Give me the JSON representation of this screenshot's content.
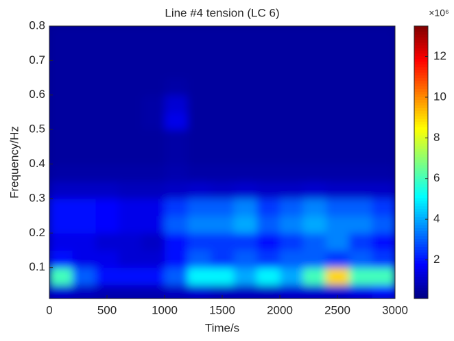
{
  "chart_data": {
    "type": "heatmap",
    "title": "Line #4 tension (LC 6)",
    "x_label": "Time/s",
    "y_label": "Frequency/Hz",
    "xlim": [
      0,
      3000
    ],
    "ylim": [
      0.01,
      0.8
    ],
    "xticks": [
      0,
      500,
      1000,
      1500,
      2000,
      2500,
      3000
    ],
    "yticks": [
      0.1,
      0.2,
      0.3,
      0.4,
      0.5,
      0.6,
      0.7,
      0.8
    ],
    "xbins": [
      0,
      200,
      400,
      600,
      800,
      1000,
      1200,
      1400,
      1600,
      1800,
      2000,
      2200,
      2400,
      2600,
      2800,
      3000
    ],
    "ybins": [
      0.01,
      0.05,
      0.1,
      0.15,
      0.2,
      0.25,
      0.3,
      0.35,
      0.4,
      0.45,
      0.5,
      0.55,
      0.6,
      0.65,
      0.7,
      0.75,
      0.8
    ],
    "z": [
      [
        1.2,
        1,
        0.8,
        0.8,
        0.8,
        1,
        1.2,
        1,
        1,
        1,
        1.2,
        1.2,
        1.2,
        1.5,
        2
      ],
      [
        6,
        3,
        2,
        2,
        2,
        3,
        5,
        5,
        4,
        5,
        4,
        6,
        9,
        6,
        6
      ],
      [
        2,
        1.5,
        1.5,
        1.2,
        1.2,
        2,
        3,
        2.5,
        3,
        2.5,
        3,
        3,
        2.5,
        3,
        2.5
      ],
      [
        1.5,
        1.5,
        1.2,
        1.2,
        1,
        2,
        2.5,
        2.5,
        2.5,
        2,
        2.5,
        3,
        3.5,
        2.5,
        2
      ],
      [
        2,
        2,
        1.8,
        1.5,
        1.5,
        3,
        3.5,
        3.5,
        4,
        3,
        3.5,
        4,
        3.5,
        3.5,
        3
      ],
      [
        2,
        2,
        1.8,
        1.5,
        1.5,
        2.5,
        3,
        3,
        3.5,
        2.5,
        3,
        3.5,
        3,
        3,
        2.5
      ],
      [
        1,
        1,
        1,
        0.9,
        0.9,
        1,
        1.1,
        1,
        1.1,
        1,
        1,
        1.1,
        1,
        1,
        1
      ],
      [
        0.6,
        0.6,
        0.6,
        0.6,
        0.6,
        0.7,
        0.6,
        0.6,
        0.6,
        0.6,
        0.6,
        0.6,
        0.6,
        0.6,
        0.6
      ],
      [
        0.5,
        0.5,
        0.5,
        0.5,
        0.5,
        0.6,
        0.5,
        0.5,
        0.5,
        0.5,
        0.5,
        0.5,
        0.5,
        0.5,
        0.5
      ],
      [
        0.5,
        0.5,
        0.5,
        0.5,
        0.5,
        0.6,
        0.5,
        0.5,
        0.5,
        0.5,
        0.5,
        0.5,
        0.5,
        0.5,
        0.5
      ],
      [
        0.5,
        0.5,
        0.5,
        0.5,
        0.6,
        1.5,
        0.5,
        0.5,
        0.5,
        0.5,
        0.5,
        0.5,
        0.5,
        0.5,
        0.5
      ],
      [
        0.5,
        0.5,
        0.5,
        0.5,
        0.6,
        1.2,
        0.5,
        0.5,
        0.5,
        0.5,
        0.5,
        0.5,
        0.5,
        0.5,
        0.5
      ],
      [
        0.5,
        0.5,
        0.5,
        0.5,
        0.5,
        0.6,
        0.5,
        0.5,
        0.5,
        0.5,
        0.5,
        0.5,
        0.5,
        0.5,
        0.5
      ],
      [
        0.5,
        0.5,
        0.5,
        0.5,
        0.5,
        0.5,
        0.5,
        0.5,
        0.5,
        0.5,
        0.5,
        0.5,
        0.5,
        0.5,
        0.5
      ],
      [
        0.5,
        0.5,
        0.5,
        0.5,
        0.5,
        0.5,
        0.5,
        0.5,
        0.5,
        0.5,
        0.5,
        0.5,
        0.5,
        0.5,
        0.5
      ],
      [
        0.5,
        0.5,
        0.5,
        0.5,
        0.5,
        0.5,
        0.5,
        0.5,
        0.5,
        0.5,
        0.5,
        0.5,
        0.5,
        0.5,
        0.5
      ]
    ],
    "colormap": "jet",
    "clim": [
      0.1,
      13.5
    ],
    "colorbar_ticks": [
      2,
      4,
      6,
      8,
      10,
      12
    ],
    "colorbar_multiplier": "×10⁶"
  }
}
